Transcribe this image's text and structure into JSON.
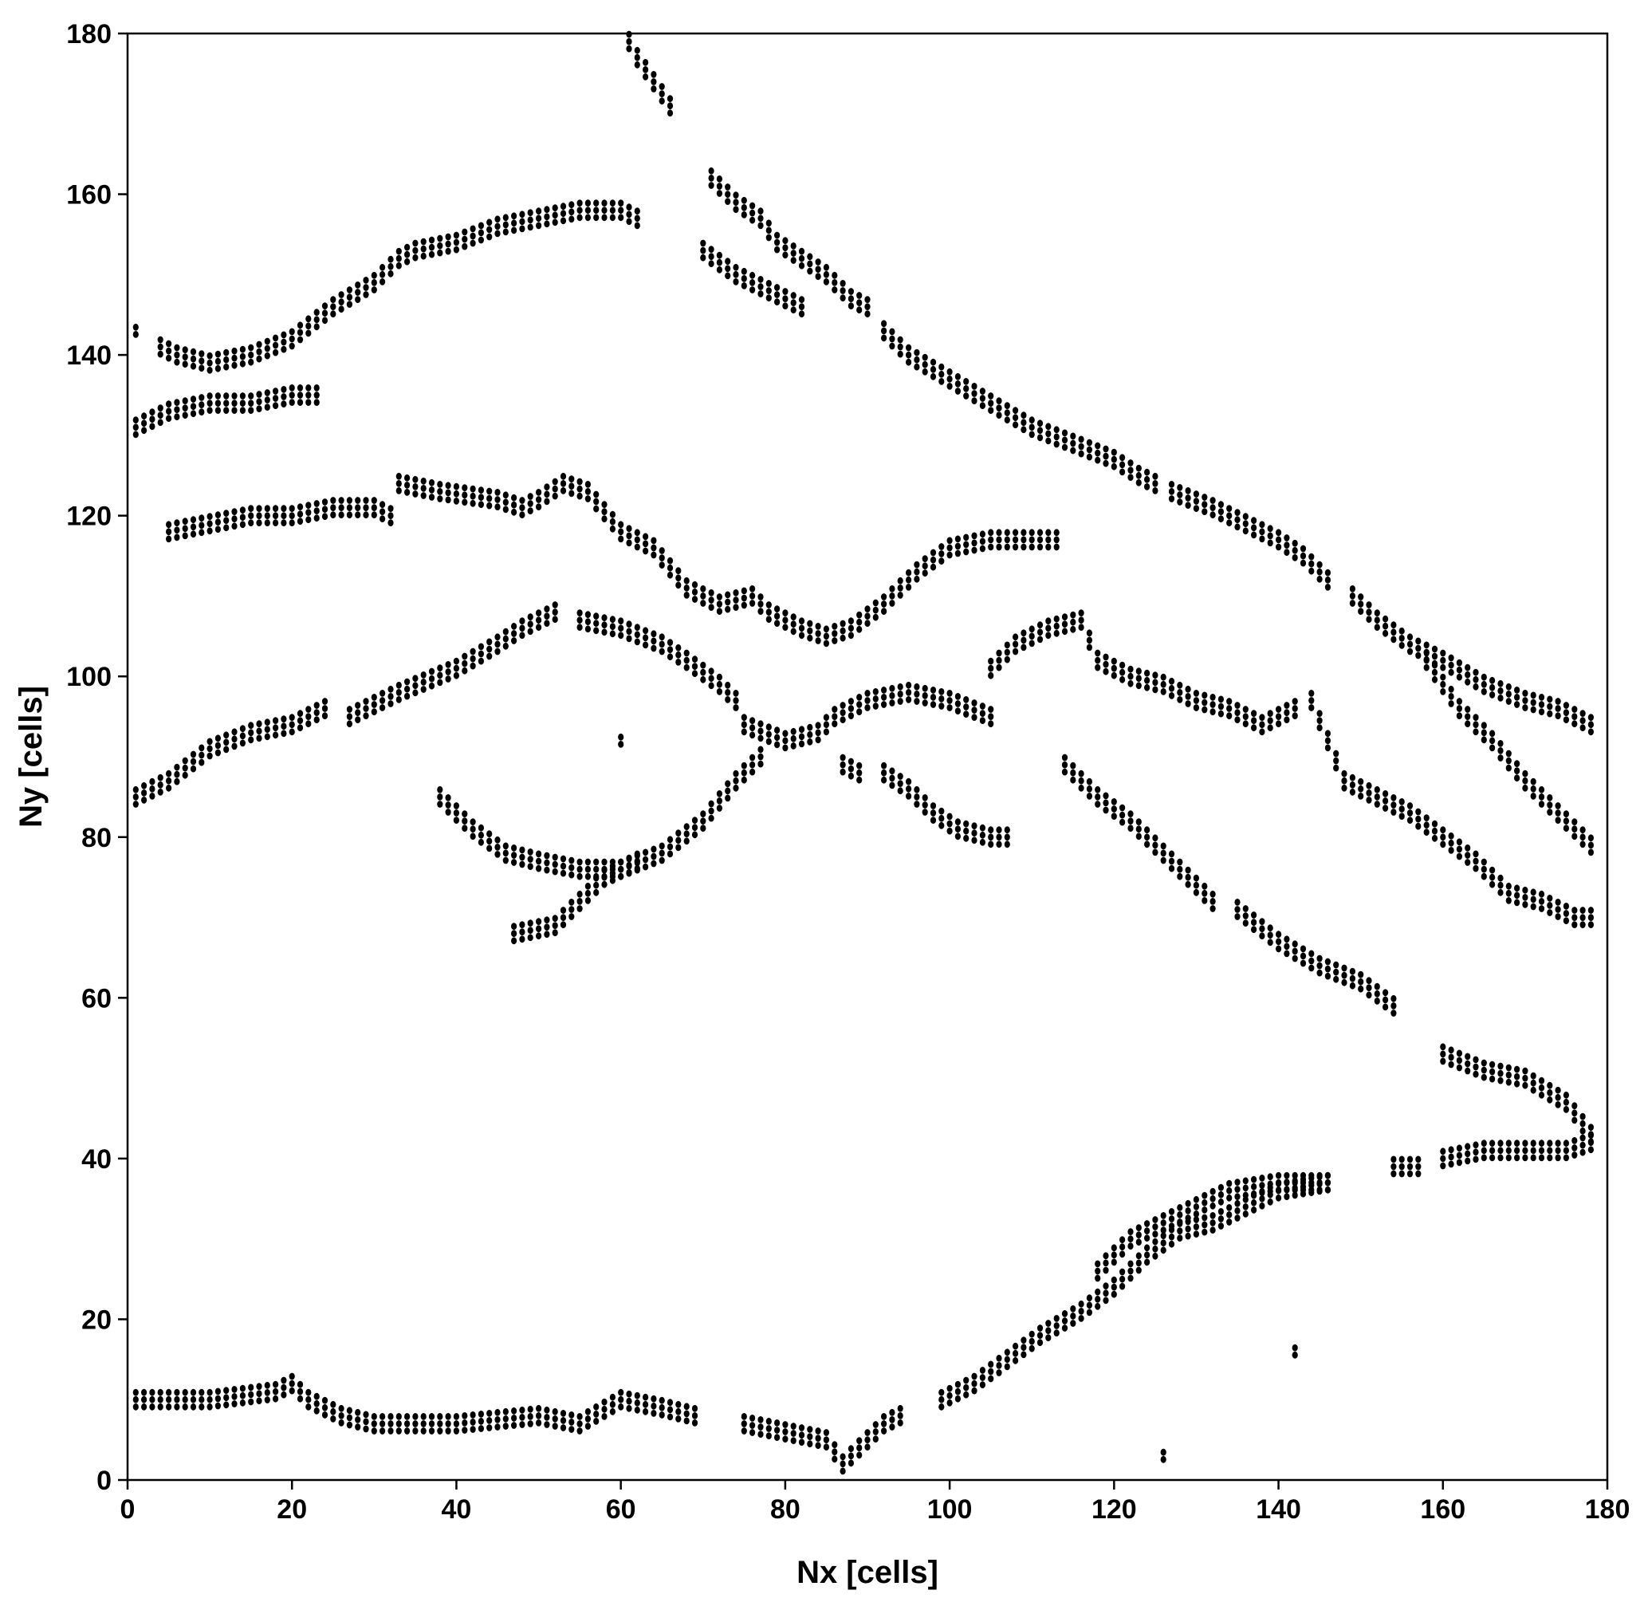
{
  "chart_data": {
    "type": "scatter",
    "xlabel": "Nx [cells]",
    "ylabel": "Ny [cells]",
    "xlim": [
      0,
      180
    ],
    "ylim": [
      0,
      180
    ],
    "xticks": [
      "0",
      "20",
      "40",
      "60",
      "80",
      "100",
      "120",
      "140",
      "160",
      "180"
    ],
    "yticks": [
      "0",
      "20",
      "40",
      "60",
      "80",
      "100",
      "120",
      "140",
      "160",
      "180"
    ],
    "grid": false,
    "marker_color": "#000000",
    "series": [
      {
        "points": [
          [
            1,
            10
          ],
          [
            10,
            10
          ],
          [
            18,
            11
          ],
          [
            20,
            12
          ],
          [
            22,
            10
          ],
          [
            26,
            8
          ],
          [
            30,
            7
          ],
          [
            40,
            7
          ],
          [
            50,
            8
          ],
          [
            55,
            7
          ],
          [
            60,
            10
          ],
          [
            65,
            9
          ],
          [
            69,
            8
          ]
        ]
      },
      {
        "points": [
          [
            75,
            7
          ],
          [
            80,
            6
          ],
          [
            85,
            5
          ],
          [
            87,
            2
          ],
          [
            89,
            4
          ],
          [
            92,
            7
          ],
          [
            94,
            8
          ]
        ]
      },
      {
        "points": [
          [
            99,
            10
          ],
          [
            103,
            12
          ],
          [
            107,
            15
          ],
          [
            111,
            18
          ],
          [
            116,
            21
          ],
          [
            120,
            24
          ],
          [
            124,
            28
          ],
          [
            128,
            31
          ],
          [
            132,
            32
          ],
          [
            136,
            34
          ],
          [
            140,
            36
          ],
          [
            146,
            37
          ]
        ]
      },
      {
        "points": [
          [
            118,
            26
          ],
          [
            122,
            30
          ],
          [
            126,
            32
          ],
          [
            130,
            34
          ],
          [
            134,
            36
          ],
          [
            140,
            37
          ],
          [
            146,
            37
          ]
        ]
      },
      {
        "points": [
          [
            142,
            16
          ]
        ]
      },
      {
        "points": [
          [
            126,
            3
          ]
        ]
      },
      {
        "points": [
          [
            154,
            39
          ],
          [
            157,
            39
          ]
        ]
      },
      {
        "points": [
          [
            160,
            40
          ],
          [
            165,
            41
          ],
          [
            170,
            41
          ],
          [
            175,
            41
          ],
          [
            178,
            42
          ]
        ]
      },
      {
        "points": [
          [
            160,
            53
          ],
          [
            165,
            51
          ],
          [
            170,
            50
          ],
          [
            175,
            47
          ],
          [
            178,
            43
          ]
        ]
      },
      {
        "points": [
          [
            1,
            85
          ],
          [
            5,
            87
          ],
          [
            10,
            91
          ],
          [
            15,
            93
          ],
          [
            20,
            94
          ],
          [
            24,
            96
          ]
        ]
      },
      {
        "points": [
          [
            27,
            95
          ],
          [
            33,
            98
          ],
          [
            40,
            101
          ],
          [
            45,
            104
          ],
          [
            48,
            106
          ],
          [
            52,
            108
          ]
        ]
      },
      {
        "points": [
          [
            55,
            107
          ],
          [
            60,
            106
          ],
          [
            65,
            104
          ],
          [
            68,
            102
          ],
          [
            72,
            99
          ],
          [
            74,
            97
          ]
        ]
      },
      {
        "points": [
          [
            38,
            85
          ],
          [
            42,
            81
          ],
          [
            46,
            78
          ],
          [
            50,
            77
          ],
          [
            55,
            76
          ],
          [
            60,
            76
          ],
          [
            65,
            78
          ],
          [
            70,
            82
          ],
          [
            74,
            87
          ],
          [
            77,
            90
          ]
        ]
      },
      {
        "points": [
          [
            47,
            68
          ],
          [
            52,
            69
          ],
          [
            55,
            72
          ],
          [
            58,
            75
          ],
          [
            62,
            77
          ]
        ]
      },
      {
        "points": [
          [
            60,
            92
          ]
        ]
      },
      {
        "points": [
          [
            75,
            94
          ],
          [
            80,
            92
          ],
          [
            84,
            93
          ],
          [
            86,
            95
          ],
          [
            90,
            97
          ],
          [
            95,
            98
          ],
          [
            100,
            97
          ],
          [
            105,
            95
          ]
        ]
      },
      {
        "points": [
          [
            87,
            89
          ],
          [
            89,
            88
          ]
        ]
      },
      {
        "points": [
          [
            92,
            88
          ],
          [
            95,
            86
          ],
          [
            98,
            83
          ],
          [
            101,
            81
          ],
          [
            105,
            80
          ],
          [
            107,
            80
          ]
        ]
      },
      {
        "points": [
          [
            105,
            101
          ],
          [
            108,
            104
          ],
          [
            112,
            106
          ],
          [
            116,
            107
          ],
          [
            118,
            102
          ],
          [
            122,
            100
          ],
          [
            126,
            99
          ],
          [
            130,
            97
          ],
          [
            134,
            96
          ],
          [
            138,
            94
          ],
          [
            142,
            96
          ]
        ]
      },
      {
        "points": [
          [
            114,
            89
          ],
          [
            118,
            85
          ],
          [
            122,
            82
          ],
          [
            126,
            78
          ],
          [
            130,
            74
          ],
          [
            132,
            72
          ]
        ]
      },
      {
        "points": [
          [
            135,
            71
          ],
          [
            140,
            67
          ],
          [
            145,
            64
          ],
          [
            150,
            62
          ],
          [
            154,
            59
          ]
        ]
      },
      {
        "points": [
          [
            144,
            97
          ],
          [
            146,
            92
          ],
          [
            148,
            87
          ],
          [
            152,
            85
          ],
          [
            156,
            83
          ],
          [
            160,
            80
          ],
          [
            164,
            77
          ],
          [
            168,
            73
          ],
          [
            172,
            72
          ],
          [
            176,
            70
          ],
          [
            178,
            70
          ]
        ]
      },
      {
        "points": [
          [
            149,
            110
          ],
          [
            152,
            107
          ],
          [
            156,
            104
          ],
          [
            160,
            102
          ],
          [
            165,
            99
          ],
          [
            170,
            97
          ],
          [
            174,
            96
          ],
          [
            178,
            94
          ]
        ]
      },
      {
        "points": [
          [
            158,
            102
          ],
          [
            162,
            96
          ],
          [
            166,
            92
          ],
          [
            170,
            87
          ],
          [
            174,
            83
          ],
          [
            178,
            79
          ]
        ]
      },
      {
        "points": [
          [
            1,
            131
          ],
          [
            5,
            133
          ],
          [
            10,
            134
          ],
          [
            15,
            134
          ],
          [
            20,
            135
          ],
          [
            23,
            135
          ]
        ]
      },
      {
        "points": [
          [
            1,
            143
          ]
        ]
      },
      {
        "points": [
          [
            4,
            141
          ],
          [
            6,
            140
          ],
          [
            10,
            139
          ],
          [
            15,
            140
          ],
          [
            20,
            142
          ],
          [
            25,
            146
          ],
          [
            30,
            149
          ],
          [
            33,
            152
          ],
          [
            35,
            153
          ],
          [
            40,
            154
          ],
          [
            45,
            156
          ],
          [
            50,
            157
          ],
          [
            55,
            158
          ],
          [
            60,
            158
          ],
          [
            62,
            157
          ]
        ]
      },
      {
        "points": [
          [
            5,
            118
          ],
          [
            10,
            119
          ],
          [
            15,
            120
          ],
          [
            20,
            120
          ],
          [
            25,
            121
          ],
          [
            30,
            121
          ],
          [
            32,
            120
          ]
        ]
      },
      {
        "points": [
          [
            33,
            124
          ],
          [
            38,
            123
          ],
          [
            45,
            122
          ],
          [
            48,
            121
          ],
          [
            50,
            122
          ],
          [
            53,
            124
          ],
          [
            56,
            123
          ],
          [
            60,
            118
          ],
          [
            64,
            116
          ],
          [
            68,
            111
          ],
          [
            72,
            109
          ],
          [
            76,
            110
          ],
          [
            78,
            108
          ],
          [
            82,
            106
          ],
          [
            85,
            105
          ],
          [
            88,
            106
          ],
          [
            92,
            109
          ],
          [
            96,
            113
          ],
          [
            100,
            116
          ],
          [
            105,
            117
          ],
          [
            110,
            117
          ],
          [
            113,
            117
          ]
        ]
      },
      {
        "points": [
          [
            61,
            179
          ],
          [
            62,
            177
          ],
          [
            64,
            174
          ],
          [
            66,
            171
          ]
        ]
      },
      {
        "points": [
          [
            71,
            162
          ],
          [
            74,
            159
          ],
          [
            77,
            157
          ],
          [
            79,
            154
          ],
          [
            82,
            152
          ],
          [
            85,
            150
          ],
          [
            88,
            147
          ],
          [
            90,
            146
          ]
        ]
      },
      {
        "points": [
          [
            70,
            153
          ],
          [
            74,
            150
          ],
          [
            78,
            148
          ],
          [
            82,
            146
          ]
        ]
      },
      {
        "points": [
          [
            92,
            143
          ],
          [
            95,
            140
          ],
          [
            100,
            137
          ],
          [
            105,
            134
          ],
          [
            110,
            131
          ],
          [
            115,
            129
          ],
          [
            120,
            127
          ],
          [
            123,
            125
          ],
          [
            125,
            124
          ]
        ]
      },
      {
        "points": [
          [
            127,
            123
          ],
          [
            132,
            121
          ],
          [
            136,
            119
          ],
          [
            140,
            117
          ],
          [
            143,
            115
          ],
          [
            146,
            112
          ]
        ]
      }
    ]
  }
}
